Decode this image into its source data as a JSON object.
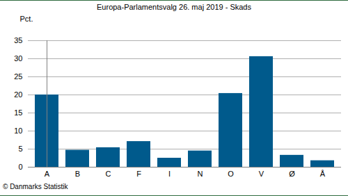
{
  "chart_data": {
    "type": "bar",
    "title": "Europa-Parlamentsvalg 26. maj 2019 - Skads",
    "ylabel": "Pct.",
    "annotation": "© Danmarks Statistik",
    "categories": [
      "A",
      "B",
      "C",
      "F",
      "I",
      "N",
      "O",
      "V",
      "Ø",
      "Å"
    ],
    "values": [
      20.0,
      4.7,
      5.4,
      7.1,
      2.5,
      4.5,
      20.4,
      30.6,
      3.3,
      1.8
    ],
    "color": "#005a8c",
    "ylim": [
      0,
      35
    ],
    "yticks": [
      0,
      5,
      10,
      15,
      20,
      25,
      30,
      35
    ],
    "grid": true
  }
}
